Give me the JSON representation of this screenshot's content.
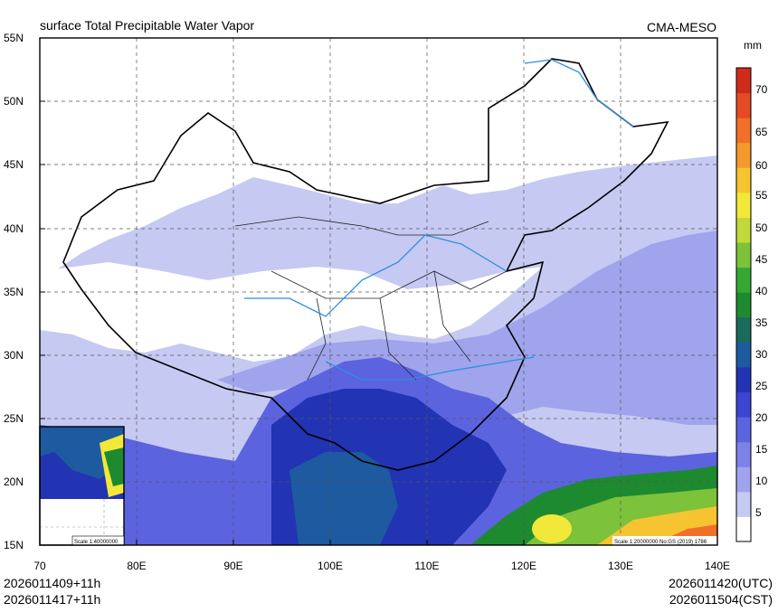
{
  "header": {
    "title": "surface Total Precipitable Water Vapor",
    "source": "CMA-MESO"
  },
  "map": {
    "lat_labels": [
      "55N",
      "50N",
      "45N",
      "40N",
      "35N",
      "30N",
      "25N",
      "20N",
      "15N"
    ],
    "lon_labels": [
      "70",
      "80E",
      "90E",
      "100E",
      "110E",
      "120E",
      "130E",
      "140E"
    ],
    "scale_text": "Scale 1:20000000 No:GS (2019) 1786",
    "inset_scale_text": "Scale 1:40000000"
  },
  "colorbar": {
    "unit": "mm",
    "labels": [
      "70",
      "65",
      "60",
      "55",
      "50",
      "45",
      "40",
      "35",
      "30",
      "25",
      "20",
      "15",
      "10",
      "5"
    ],
    "colors": [
      "#ffffff",
      "#c6c9f2",
      "#9fa4ec",
      "#7c82e6",
      "#5c63de",
      "#3c44d4",
      "#2233b3",
      "#1d5aa0",
      "#1a6b5b",
      "#1e8a2f",
      "#34a833",
      "#7cc23a",
      "#c2d93c",
      "#f2e83a",
      "#f7c431",
      "#f49a2c",
      "#f0702a",
      "#e44a24",
      "#d02a1c"
    ]
  },
  "footer": {
    "init_time_1": "2026011409+11h",
    "init_time_2": "2026011417+11h",
    "valid_utc": "2026011420(UTC)",
    "valid_cst": "2026011504(CST)"
  }
}
